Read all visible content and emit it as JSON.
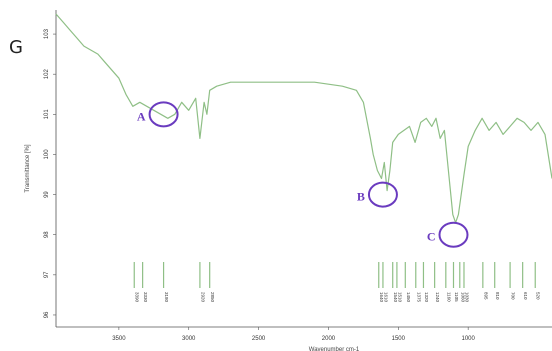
{
  "header_fragment": "G",
  "chart_data": {
    "type": "line",
    "title": "",
    "xlabel": "Wavenumber cm-1",
    "ylabel": "Transmittance [%]",
    "xlim": [
      3950,
      400
    ],
    "ylim": [
      95.7,
      103.6
    ],
    "x_ticks": [
      3500,
      3000,
      2500,
      2000,
      1500,
      1000
    ],
    "y_ticks": [
      96,
      97,
      98,
      99,
      100,
      101,
      102,
      103
    ],
    "grid": false,
    "line_color": "#8fbf86",
    "series": [
      {
        "x": [
          3950,
          3900,
          3850,
          3800,
          3750,
          3700,
          3650,
          3600,
          3550,
          3500,
          3450,
          3400,
          3350,
          3300,
          3250,
          3200,
          3150,
          3100,
          3050,
          3000,
          2950,
          2920,
          2890,
          2870,
          2850,
          2800,
          2700,
          2500,
          2300,
          2100,
          1900,
          1800,
          1750,
          1700,
          1680,
          1650,
          1620,
          1600,
          1580,
          1560,
          1540,
          1500,
          1460,
          1420,
          1380,
          1340,
          1300,
          1260,
          1230,
          1200,
          1170,
          1150,
          1130,
          1110,
          1090,
          1070,
          1050,
          1030,
          1000,
          950,
          900,
          850,
          800,
          750,
          700,
          650,
          600,
          550,
          500,
          450,
          400
        ],
        "y": [
          103.5,
          103.3,
          103.1,
          102.9,
          102.7,
          102.6,
          102.5,
          102.3,
          102.1,
          101.9,
          101.5,
          101.2,
          101.3,
          101.2,
          101.1,
          101.0,
          100.9,
          101.0,
          101.3,
          101.1,
          101.4,
          100.4,
          101.3,
          101.0,
          101.6,
          101.7,
          101.8,
          101.8,
          101.8,
          101.8,
          101.7,
          101.6,
          101.3,
          100.4,
          100.0,
          99.6,
          99.4,
          99.8,
          99.1,
          99.6,
          100.3,
          100.5,
          100.6,
          100.7,
          100.3,
          100.8,
          100.9,
          100.7,
          100.9,
          100.4,
          100.6,
          99.9,
          99.2,
          98.5,
          98.3,
          98.5,
          99.0,
          99.5,
          100.2,
          100.6,
          100.9,
          100.6,
          100.8,
          100.5,
          100.7,
          100.9,
          100.8,
          100.6,
          100.8,
          100.5,
          99.4
        ]
      }
    ],
    "peaks": [
      {
        "x": 3390,
        "label": "3390"
      },
      {
        "x": 3330,
        "label": "3330"
      },
      {
        "x": 3180,
        "label": "3180"
      },
      {
        "x": 2920,
        "label": "2920"
      },
      {
        "x": 2850,
        "label": "2850"
      },
      {
        "x": 1640,
        "label": "1640"
      },
      {
        "x": 1610,
        "label": "1610"
      },
      {
        "x": 1540,
        "label": "1540"
      },
      {
        "x": 1510,
        "label": "1510"
      },
      {
        "x": 1450,
        "label": "1450"
      },
      {
        "x": 1375,
        "label": "1375"
      },
      {
        "x": 1320,
        "label": "1320"
      },
      {
        "x": 1240,
        "label": "1240"
      },
      {
        "x": 1160,
        "label": "1160"
      },
      {
        "x": 1105,
        "label": "1105"
      },
      {
        "x": 1060,
        "label": "1060"
      },
      {
        "x": 1030,
        "label": "1030"
      },
      {
        "x": 895,
        "label": "895"
      },
      {
        "x": 810,
        "label": "810"
      },
      {
        "x": 700,
        "label": "700"
      },
      {
        "x": 610,
        "label": "610"
      },
      {
        "x": 520,
        "label": "520"
      }
    ],
    "annotations": [
      {
        "label": "A",
        "x": 3180,
        "y": 101.0,
        "color": "#6a3bbf"
      },
      {
        "label": "B",
        "x": 1610,
        "y": 99.0,
        "color": "#6a3bbf"
      },
      {
        "label": "C",
        "x": 1105,
        "y": 98.0,
        "color": "#6a3bbf"
      }
    ]
  }
}
